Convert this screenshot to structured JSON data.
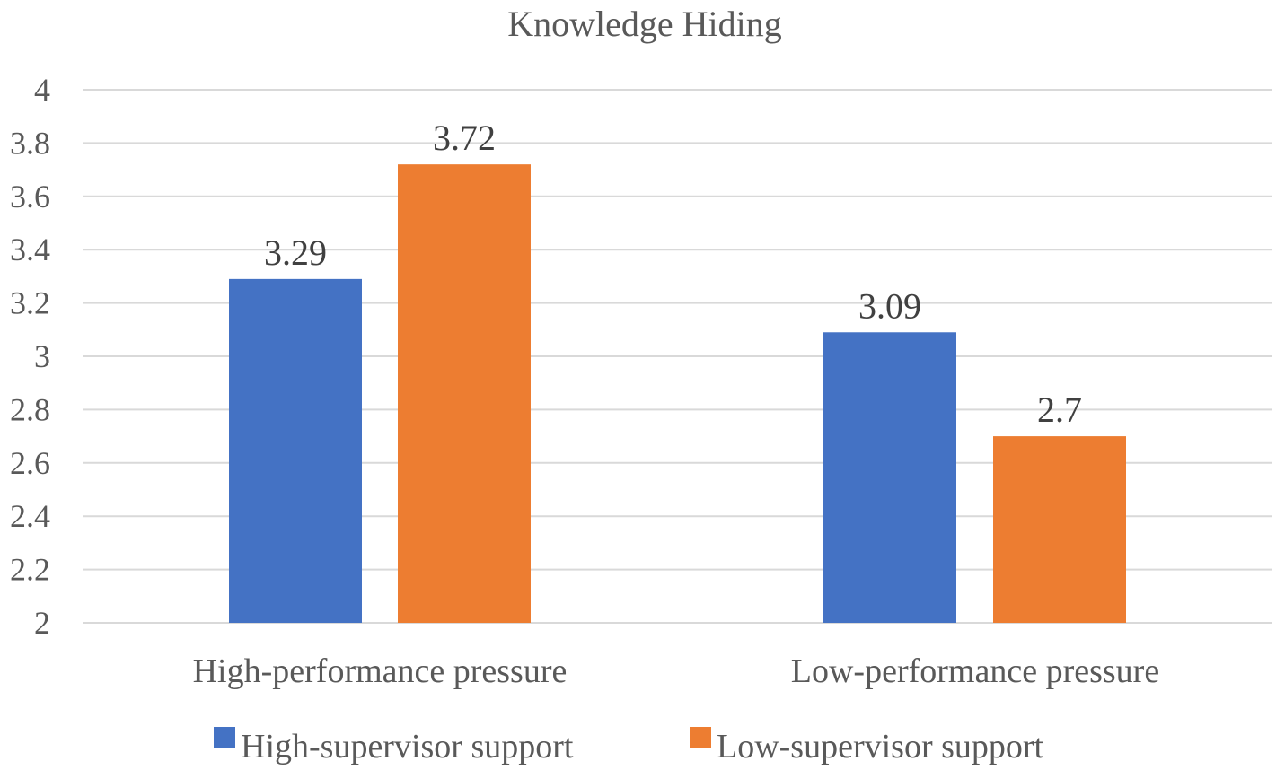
{
  "chart_data": {
    "type": "bar",
    "title": "Knowledge Hiding",
    "categories": [
      "High-performance pressure",
      "Low-performance pressure"
    ],
    "series": [
      {
        "name": "High-supervisor support",
        "values": [
          3.29,
          3.09
        ],
        "color": "#4472c4"
      },
      {
        "name": "Low-supervisor support",
        "values": [
          3.72,
          2.7
        ],
        "color": "#ed7d31"
      }
    ],
    "ylim": [
      2,
      4
    ],
    "yticks": [
      "2",
      "2.2",
      "2.4",
      "2.6",
      "2.8",
      "3",
      "3.2",
      "3.4",
      "3.6",
      "3.8",
      "4"
    ],
    "data_labels": [
      [
        "3.29",
        "3.09"
      ],
      [
        "3.72",
        "2.7"
      ]
    ],
    "grid": true,
    "legend_position": "bottom"
  }
}
